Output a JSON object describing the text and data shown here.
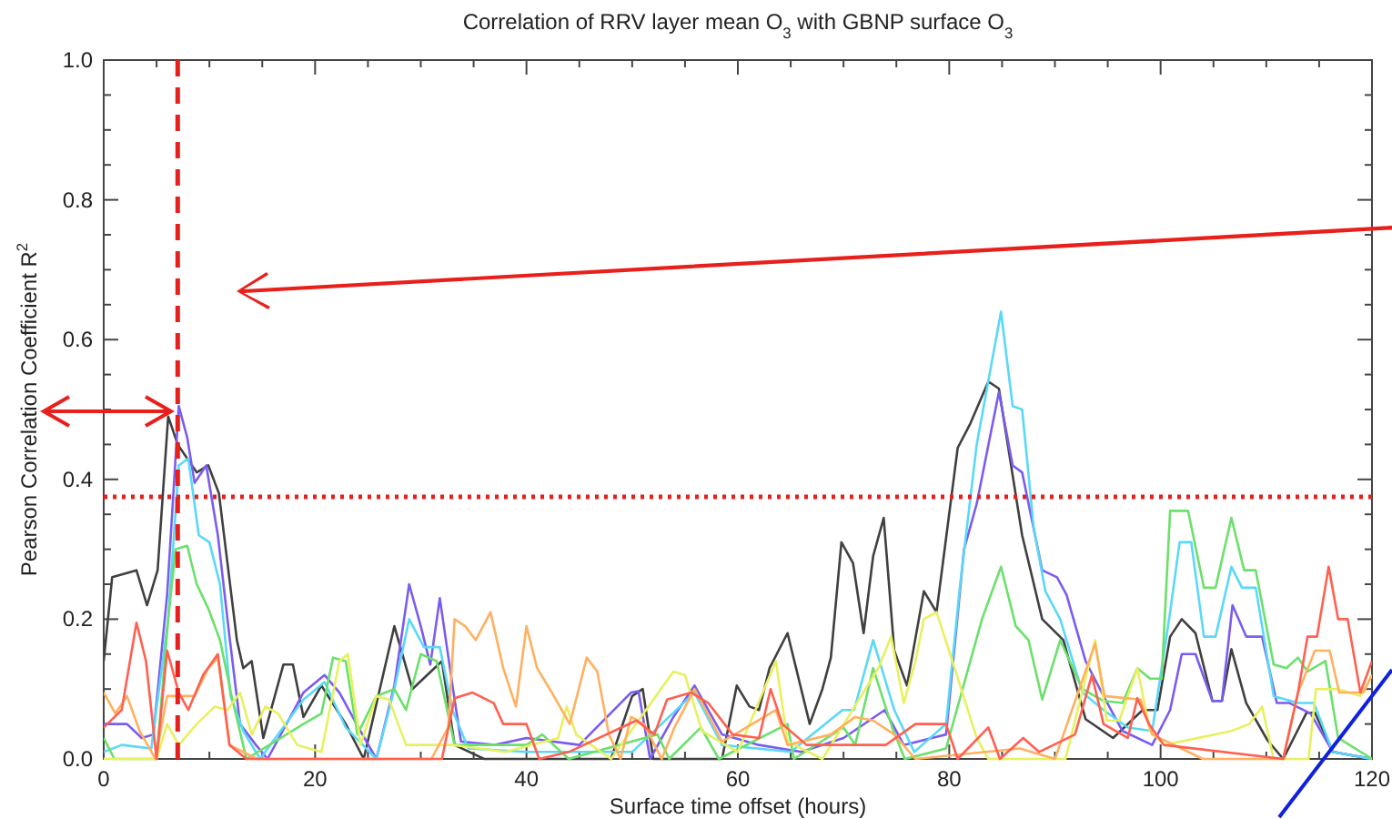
{
  "chart_data": {
    "type": "line",
    "title": "Correlation of RRV layer mean O$_{3}$ with GBNP surface O$_{3}$",
    "xlabel": "Surface time offset (hours)",
    "ylabel": "Pearson Correlation Coefficient R$^{2}$",
    "xlim": [
      0,
      120
    ],
    "ylim": [
      0,
      1
    ],
    "xticks": [
      0,
      {
        "value": 5,
        "label": null
      },
      {
        "value": 10,
        "label": null
      },
      {
        "value": 15,
        "label": null
      },
      20,
      {
        "value": 25,
        "label": null
      },
      {
        "value": 30,
        "label": null
      },
      {
        "value": 35,
        "label": null
      },
      40,
      {
        "value": 45,
        "label": null
      },
      {
        "value": 50,
        "label": null
      },
      {
        "value": 55,
        "label": null
      },
      60,
      {
        "value": 65,
        "label": null
      },
      {
        "value": 70,
        "label": null
      },
      {
        "value": 75,
        "label": null
      },
      80,
      {
        "value": 85,
        "label": null
      },
      {
        "value": 90,
        "label": null
      },
      {
        "value": 95,
        "label": null
      },
      100,
      {
        "value": 105,
        "label": null
      },
      {
        "value": 110,
        "label": null
      },
      {
        "value": 115,
        "label": null
      },
      120
    ],
    "yticks": [
      {
        "value": 0,
        "label": "0.0"
      },
      {
        "value": 0.05,
        "label": null
      },
      {
        "value": 0.1,
        "label": null
      },
      {
        "value": 0.15,
        "label": null
      },
      {
        "value": 0.2,
        "label": "0.2"
      },
      {
        "value": 0.25,
        "label": null
      },
      {
        "value": 0.3,
        "label": null
      },
      {
        "value": 0.35,
        "label": null
      },
      {
        "value": 0.4,
        "label": "0.4"
      },
      {
        "value": 0.45,
        "label": null
      },
      {
        "value": 0.5,
        "label": null
      },
      {
        "value": 0.55,
        "label": null
      },
      {
        "value": 0.6,
        "label": "0.6"
      },
      {
        "value": 0.65,
        "label": null
      },
      {
        "value": 0.7,
        "label": null
      },
      {
        "value": 0.75,
        "label": null
      },
      {
        "value": 0.8,
        "label": "0.8"
      },
      {
        "value": 0.85,
        "label": null
      },
      {
        "value": 0.9,
        "label": null
      },
      {
        "value": 0.95,
        "label": null
      },
      {
        "value": 1,
        "label": "1.0"
      }
    ],
    "grid": false,
    "marker": "none",
    "line_style": "solid",
    "ref_lines": [
      {
        "axis": "x",
        "value": 7,
        "color": "#e8201c",
        "line_style": "dashed"
      },
      {
        "axis": "y",
        "value": 0.375,
        "color": "#e8201c",
        "line_style": "dotted"
      }
    ],
    "series": [
      {
        "color": "#404040",
        "x": [
          0,
          0.8,
          3.1,
          4.1,
          5.1,
          6.1,
          7,
          8.8,
          9.9,
          10.9,
          12.6,
          13.2,
          14,
          15.1,
          17,
          17.9,
          18.9,
          20.6,
          22.9,
          24.6,
          27.5,
          29.2,
          32,
          33.2,
          36,
          40,
          45,
          48,
          50,
          51,
          52,
          55,
          58.5,
          59.9,
          61.1,
          62,
          63,
          64.7,
          66.8,
          68,
          68.8,
          69.8,
          70.9,
          71.9,
          72.8,
          73.8,
          74.8,
          76,
          77.6,
          78.8,
          80.8,
          82,
          83.7,
          84.7,
          86.9,
          88.8,
          90.8,
          92.9,
          95.5,
          98.3,
          99.7,
          100.9,
          102,
          103.3,
          104.9,
          105.8,
          106.7,
          108.1,
          110.1,
          111.6,
          113.8,
          114.6,
          116.3,
          120
        ],
        "values": [
          0.14,
          0.26,
          0.27,
          0.22,
          0.27,
          0.49,
          0.45,
          0.41,
          0.42,
          0.38,
          0.17,
          0.13,
          0.14,
          0.03,
          0.135,
          0.135,
          0.06,
          0.105,
          0.05,
          0,
          0.19,
          0.1,
          0.14,
          0.02,
          0,
          0,
          0,
          0,
          0.09,
          0.1,
          0,
          0,
          0,
          0.105,
          0.075,
          0.07,
          0.13,
          0.18,
          0.05,
          0.1,
          0.145,
          0.31,
          0.28,
          0.18,
          0.29,
          0.345,
          0.155,
          0.105,
          0.24,
          0.21,
          0.445,
          0.48,
          0.54,
          0.53,
          0.32,
          0.2,
          0.17,
          0.057,
          0.03,
          0.07,
          0.07,
          0.175,
          0.2,
          0.18,
          0.083,
          0.083,
          0.157,
          0.08,
          0.027,
          0,
          0.066,
          0.066,
          0.01,
          0
        ]
      },
      {
        "color": "#7b5cf0",
        "x": [
          0,
          2.2,
          3.6,
          4.7,
          6,
          7.1,
          7.9,
          8.6,
          9.7,
          10.8,
          11.9,
          12.9,
          14.4,
          15.5,
          18.9,
          20.9,
          22.3,
          24.1,
          25.8,
          27.5,
          28.9,
          30,
          30.9,
          31.8,
          33,
          33.8,
          37,
          40,
          45,
          49.9,
          50.6,
          51.7,
          53.9,
          55.9,
          58.5,
          62,
          66,
          70,
          73.9,
          75.7,
          79.7,
          81.4,
          82.6,
          84.7,
          86,
          86.9,
          88.8,
          90.2,
          91.1,
          92.9,
          94.6,
          96.4,
          99.2,
          100.9,
          102,
          103.3,
          104.9,
          105.8,
          106.8,
          108.1,
          109.6,
          111,
          112.2,
          114.2,
          116.3,
          120
        ],
        "values": [
          0.05,
          0.05,
          0.03,
          0.035,
          0.235,
          0.505,
          0.46,
          0.395,
          0.42,
          0.32,
          0.175,
          0.05,
          0.02,
          0,
          0.095,
          0.12,
          0.095,
          0.045,
          0,
          0.105,
          0.25,
          0.19,
          0.135,
          0.23,
          0.105,
          0.025,
          0.02,
          0.03,
          0.02,
          0.095,
          0.097,
          0,
          0.06,
          0.105,
          0.035,
          0.02,
          0.01,
          0.03,
          0.07,
          0.02,
          0.035,
          0.3,
          0.365,
          0.525,
          0.42,
          0.41,
          0.27,
          0.26,
          0.235,
          0.14,
          0.09,
          0.04,
          0.02,
          0.07,
          0.15,
          0.15,
          0.083,
          0.083,
          0.22,
          0.175,
          0.175,
          0.08,
          0.08,
          0.065,
          0.01,
          0
        ]
      },
      {
        "color": "#5ad8f8",
        "x": [
          0,
          1.7,
          4.5,
          6.1,
          7.1,
          8,
          9,
          10,
          11,
          12,
          13.2,
          14.8,
          18.9,
          20.9,
          22.9,
          25.8,
          27.5,
          28.9,
          30.3,
          31.8,
          33,
          34.5,
          40,
          50,
          55.9,
          58.5,
          65,
          69.9,
          71,
          72.8,
          74.8,
          76.7,
          79.7,
          81,
          82.6,
          84.9,
          86,
          86.9,
          88,
          89.1,
          90.5,
          92.6,
          94.6,
          96.9,
          99.2,
          100.9,
          101.8,
          102.9,
          104.1,
          105.2,
          106.7,
          107.7,
          109,
          110.7,
          113,
          114.5,
          116.3,
          120
        ],
        "values": [
          0.01,
          0.02,
          0.015,
          0.2,
          0.42,
          0.43,
          0.32,
          0.31,
          0.25,
          0.09,
          0.04,
          0,
          0.085,
          0.11,
          0.045,
          0,
          0.1,
          0.2,
          0.16,
          0.16,
          0.07,
          0.015,
          0.01,
          0.01,
          0.095,
          0.02,
          0.01,
          0.07,
          0.07,
          0.17,
          0.07,
          0.01,
          0.05,
          0.245,
          0.45,
          0.64,
          0.505,
          0.5,
          0.33,
          0.24,
          0.2,
          0.095,
          0.07,
          0.045,
          0.04,
          0.21,
          0.31,
          0.31,
          0.175,
          0.175,
          0.275,
          0.245,
          0.245,
          0.09,
          0.08,
          0.08,
          0.01,
          0
        ]
      },
      {
        "color": "#6be06b",
        "x": [
          0,
          1,
          5,
          6.1,
          6.8,
          7.9,
          8.8,
          9.9,
          11,
          12.1,
          13.5,
          18.9,
          20.6,
          21.7,
          22.9,
          24,
          25.8,
          27.5,
          28.6,
          30,
          31.5,
          33.2,
          40,
          41.5,
          44,
          52.4,
          53.5,
          56.5,
          58.2,
          64.7,
          65.3,
          70,
          71.1,
          72.8,
          74.6,
          75.8,
          79.7,
          83.1,
          84.9,
          86.3,
          87.5,
          88.8,
          90.5,
          92.6,
          94.6,
          96.4,
          97.8,
          99,
          100.1,
          100.9,
          102.6,
          104.1,
          105.2,
          106.7,
          107.9,
          109,
          110.7,
          111.9,
          113,
          113.9,
          115.6,
          116.8,
          120
        ],
        "values": [
          0.03,
          0,
          0,
          0.2,
          0.3,
          0.305,
          0.25,
          0.215,
          0.17,
          0.09,
          0,
          0.05,
          0.065,
          0.145,
          0.14,
          0.035,
          0.09,
          0.1,
          0.07,
          0.15,
          0.14,
          0.02,
          0.02,
          0.035,
          0,
          0.035,
          0,
          0.045,
          0,
          0.05,
          0,
          0.045,
          0.02,
          0.13,
          0.045,
          0,
          0.015,
          0.2,
          0.275,
          0.19,
          0.17,
          0.085,
          0.17,
          0.1,
          0.083,
          0.08,
          0.13,
          0.115,
          0.115,
          0.355,
          0.355,
          0.245,
          0.245,
          0.345,
          0.27,
          0.27,
          0.135,
          0.13,
          0.145,
          0.125,
          0.14,
          0.03,
          0
        ]
      },
      {
        "color": "#e8f060",
        "x": [
          0,
          5,
          6,
          7.1,
          8.8,
          10.5,
          11.7,
          12.9,
          14,
          15.3,
          16.5,
          18.3,
          20.6,
          22.3,
          23.1,
          24.3,
          25.8,
          27,
          28.6,
          33,
          38,
          43,
          43.8,
          44.7,
          48,
          53.9,
          55,
          56.6,
          60,
          63.6,
          64.7,
          68,
          73.3,
          74.5,
          75.7,
          76.8,
          77.6,
          78.8,
          80.3,
          82.6,
          83.7,
          91,
          93.8,
          94.9,
          96.1,
          97.8,
          99,
          100.4,
          106.7,
          108.4,
          109.6,
          110.7,
          114,
          114.7,
          116.8,
          118.9,
          120
        ],
        "values": [
          0,
          0,
          0.05,
          0.02,
          0.05,
          0.075,
          0.07,
          0.095,
          0.035,
          0.075,
          0.065,
          0.02,
          0.01,
          0.14,
          0.15,
          0.02,
          0.09,
          0.085,
          0.02,
          0.02,
          0.01,
          0.03,
          0.075,
          0.035,
          0,
          0.125,
          0.12,
          0.04,
          0.01,
          0.14,
          0.025,
          0,
          0.13,
          0.175,
          0.08,
          0.14,
          0.2,
          0.21,
          0.14,
          0.03,
          0,
          0,
          0.17,
          0.055,
          0.055,
          0.13,
          0.04,
          0.02,
          0.04,
          0.05,
          0.075,
          0,
          0,
          0.1,
          0.1,
          0.09,
          0.12
        ]
      },
      {
        "color": "#ffb060",
        "x": [
          0,
          1.1,
          2.2,
          3.4,
          4.9,
          6,
          8.6,
          9.9,
          10.8,
          11.9,
          14.5,
          31,
          32.6,
          33.2,
          34.2,
          35.2,
          36.6,
          37.8,
          39,
          40,
          41,
          42.4,
          44.1,
          45.7,
          46.7,
          47.8,
          48.9,
          49.9,
          51.1,
          52.8,
          54,
          55.9,
          58.5,
          59.7,
          63.6,
          64.7,
          68.8,
          71.1,
          72.8,
          74.8,
          76.8,
          86.7,
          90,
          93.8,
          94.7,
          98.1,
          99.2,
          104,
          111.6,
          113,
          114.6,
          116,
          116.9,
          119.2,
          120
        ],
        "values": [
          0.095,
          0.065,
          0.09,
          0.04,
          0,
          0.09,
          0.09,
          0.13,
          0.145,
          0.02,
          0,
          0,
          0.045,
          0.2,
          0.19,
          0.17,
          0.21,
          0.13,
          0.075,
          0.19,
          0.13,
          0.095,
          0.05,
          0.145,
          0.125,
          0.035,
          0,
          0.06,
          0.05,
          0,
          0.045,
          0.1,
          0.025,
          0.035,
          0.07,
          0.02,
          0.035,
          0.06,
          0.055,
          0.035,
          0,
          0.015,
          0,
          0.165,
          0.09,
          0.085,
          0.035,
          0,
          0,
          0.095,
          0.155,
          0.155,
          0.095,
          0.095,
          0.12
        ]
      },
      {
        "color": "#ff6050",
        "x": [
          0,
          1.7,
          3.1,
          4,
          5,
          6,
          7.1,
          8,
          9.4,
          10.8,
          11.9,
          13.5,
          32,
          33.2,
          34.9,
          36.9,
          37.8,
          39,
          40,
          41.2,
          44,
          50.4,
          52.1,
          53.3,
          55.6,
          57.2,
          59.5,
          62,
          63.1,
          64.2,
          66.5,
          74,
          76.8,
          78.5,
          79.7,
          80.8,
          83.7,
          84.8,
          87,
          88.5,
          91.9,
          93.5,
          94.6,
          96.9,
          97.8,
          98.9,
          100.3,
          111.6,
          113,
          113.9,
          114.8,
          115.9,
          116.8,
          117.7,
          118.9,
          120
        ],
        "values": [
          0.045,
          0.07,
          0.195,
          0.14,
          0,
          0.155,
          0.095,
          0.07,
          0.12,
          0.15,
          0.02,
          0,
          0,
          0.087,
          0.095,
          0.08,
          0.05,
          0.05,
          0.05,
          0,
          0.01,
          0.055,
          0.035,
          0.085,
          0.095,
          0.08,
          0.035,
          0.03,
          0.1,
          0.05,
          0.02,
          0.02,
          0.05,
          0.05,
          0.05,
          0,
          0.045,
          0,
          0.03,
          0.01,
          0.035,
          0.12,
          0.05,
          0.03,
          0.087,
          0.05,
          0.02,
          0,
          0.095,
          0.175,
          0.175,
          0.275,
          0.2,
          0.2,
          0.095,
          0.14
        ]
      }
    ]
  }
}
